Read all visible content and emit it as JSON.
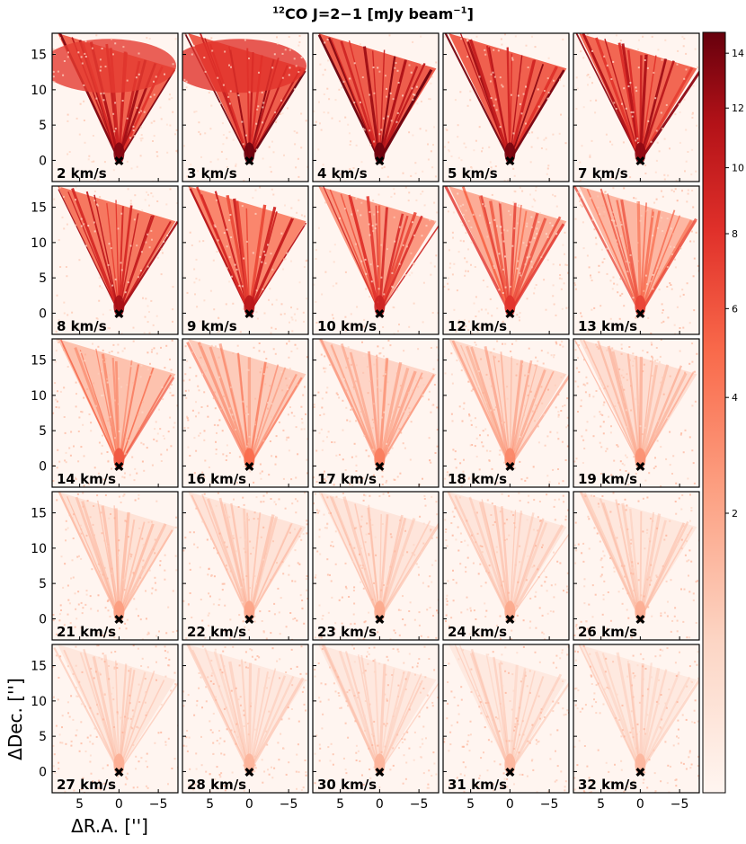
{
  "chart_data": {
    "type": "heatmap",
    "title": {
      "sup_text": "12",
      "main_text": "CO J=2−1 [mJy beam",
      "unit_exp": "−1",
      "close_text": "]"
    },
    "layout": {
      "rows": 5,
      "cols": 5,
      "sharex": true,
      "sharey": true
    },
    "xlabel": "ΔR.A. ['']",
    "ylabel": "ΔDec. ['']",
    "xlim": [
      8.5,
      -7.5
    ],
    "ylim": [
      -3,
      18
    ],
    "xticks": [
      5,
      0,
      -5
    ],
    "xtick_labels": [
      "5",
      "0",
      "−5"
    ],
    "yticks": [
      0,
      5,
      10,
      15
    ],
    "ytick_labels": [
      "0",
      "5",
      "10",
      "15"
    ],
    "source_marker": {
      "x": 0,
      "y": 0,
      "symbol": "✖"
    },
    "colormap": "Reds",
    "colorbar": {
      "scale": "sqrt",
      "range": [
        0,
        14.8
      ],
      "ticks": [
        2,
        4,
        6,
        8,
        10,
        12,
        14
      ],
      "tick_labels": [
        "2",
        "4",
        "6",
        "8",
        "10",
        "12",
        "14"
      ]
    },
    "channels": [
      {
        "label": "2 km/s",
        "velocity": 2,
        "peak": 13.5
      },
      {
        "label": "3 km/s",
        "velocity": 3,
        "peak": 14.5
      },
      {
        "label": "4 km/s",
        "velocity": 4,
        "peak": 14.5
      },
      {
        "label": "5 km/s",
        "velocity": 5,
        "peak": 14.0
      },
      {
        "label": "7 km/s",
        "velocity": 7,
        "peak": 13.0
      },
      {
        "label": "8 km/s",
        "velocity": 8,
        "peak": 12.0
      },
      {
        "label": "9 km/s",
        "velocity": 9,
        "peak": 11.0
      },
      {
        "label": "10 km/s",
        "velocity": 10,
        "peak": 9.5
      },
      {
        "label": "12 km/s",
        "velocity": 12,
        "peak": 8.0
      },
      {
        "label": "13 km/s",
        "velocity": 13,
        "peak": 7.0
      },
      {
        "label": "14 km/s",
        "velocity": 14,
        "peak": 6.0
      },
      {
        "label": "16 km/s",
        "velocity": 16,
        "peak": 5.0
      },
      {
        "label": "17 km/s",
        "velocity": 17,
        "peak": 4.0
      },
      {
        "label": "18 km/s",
        "velocity": 18,
        "peak": 3.5
      },
      {
        "label": "19 km/s",
        "velocity": 19,
        "peak": 3.0
      },
      {
        "label": "21 km/s",
        "velocity": 21,
        "peak": 2.5
      },
      {
        "label": "22 km/s",
        "velocity": 22,
        "peak": 2.2
      },
      {
        "label": "23 km/s",
        "velocity": 23,
        "peak": 2.0
      },
      {
        "label": "24 km/s",
        "velocity": 24,
        "peak": 2.0
      },
      {
        "label": "26 km/s",
        "velocity": 26,
        "peak": 1.8
      },
      {
        "label": "27 km/s",
        "velocity": 27,
        "peak": 1.8
      },
      {
        "label": "28 km/s",
        "velocity": 28,
        "peak": 1.6
      },
      {
        "label": "30 km/s",
        "velocity": 30,
        "peak": 1.6
      },
      {
        "label": "31 km/s",
        "velocity": 31,
        "peak": 1.5
      },
      {
        "label": "32 km/s",
        "velocity": 32,
        "peak": 1.5
      }
    ]
  }
}
